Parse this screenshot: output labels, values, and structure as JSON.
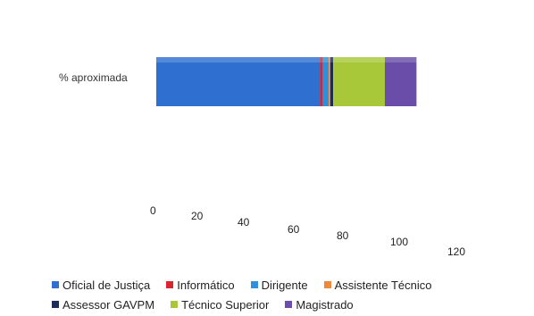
{
  "chart_data": {
    "type": "bar",
    "orientation": "horizontal",
    "stacked": true,
    "categories": [
      "% aproximada"
    ],
    "series": [
      {
        "name": "Oficial de Justiça",
        "values": [
          57
        ],
        "color": "#2f6fcf"
      },
      {
        "name": "Informático",
        "values": [
          1
        ],
        "color": "#d9252f"
      },
      {
        "name": "Dirigente",
        "values": [
          2
        ],
        "color": "#2f8fd8"
      },
      {
        "name": "Assistente Técnico",
        "values": [
          0.5
        ],
        "color": "#f08a3a"
      },
      {
        "name": "Assessor GAVPM",
        "values": [
          1
        ],
        "color": "#1c2c5a"
      },
      {
        "name": "Técnico Superior",
        "values": [
          18
        ],
        "color": "#a8c83a"
      },
      {
        "name": "Magistrado",
        "values": [
          11
        ],
        "color": "#6a4da8"
      }
    ],
    "xlim": [
      0,
      120
    ],
    "ticks": [
      "0",
      "20",
      "40",
      "60",
      "80",
      "100",
      "120"
    ],
    "grid": false,
    "legend_position": "bottom"
  }
}
